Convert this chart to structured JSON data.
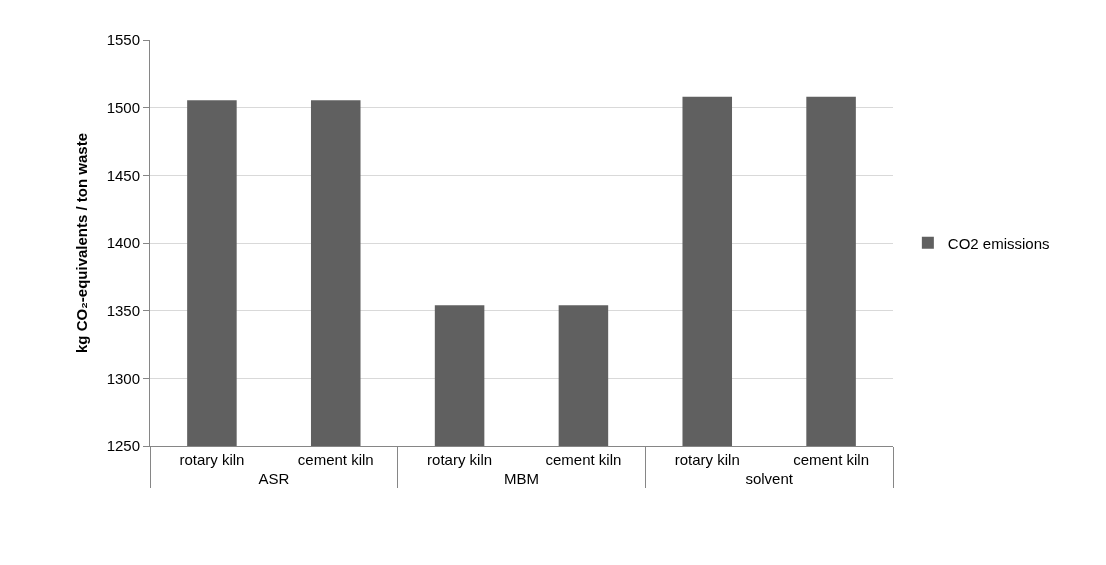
{
  "chart_data": {
    "type": "bar",
    "ylabel": "kg CO₂-equivalents / ton waste",
    "categories": [
      "rotary kiln",
      "cement kiln",
      "rotary kiln",
      "cement kiln",
      "rotary kiln",
      "cement kiln"
    ],
    "series": [
      {
        "name": "CO2 emissions",
        "color": "#606060",
        "values": [
          1505.5,
          1505.5,
          1354,
          1354,
          1508,
          1508
        ]
      }
    ],
    "annotations": [
      "ASR",
      "MBM",
      "solvent"
    ],
    "ylim": [
      1250,
      1550
    ],
    "yticks": [
      1250,
      1300,
      1350,
      1400,
      1450,
      1500,
      1550
    ],
    "grid": "y",
    "legend": "right"
  }
}
